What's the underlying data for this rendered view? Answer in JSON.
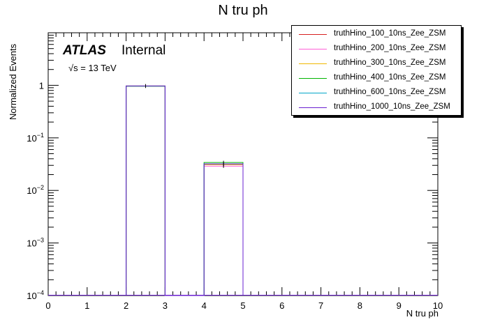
{
  "chart_data": {
    "type": "bar",
    "title": "N tru ph",
    "xlabel": "N tru ph",
    "ylabel": "Normalized Events",
    "xlim": [
      0,
      10
    ],
    "ylim": [
      0.0001,
      10
    ],
    "yscale": "log",
    "atlas_label": "ATLAS",
    "atlas_status": "Internal",
    "energy_label": "√s = 13 TeV",
    "legend_position": "top-right",
    "x_ticks": [
      "0",
      "1",
      "2",
      "3",
      "4",
      "5",
      "6",
      "7",
      "8",
      "9",
      "10"
    ],
    "y_ticks": [
      {
        "value": 0.0001,
        "base": "10",
        "exp": "−4"
      },
      {
        "value": 0.001,
        "base": "10",
        "exp": "−3"
      },
      {
        "value": 0.01,
        "base": "10",
        "exp": "−2"
      },
      {
        "value": 0.1,
        "base": "10",
        "exp": "−1"
      },
      {
        "value": 1,
        "base": "1",
        "exp": ""
      }
    ],
    "bins": [
      [
        2,
        3
      ],
      [
        4,
        5
      ]
    ],
    "series": [
      {
        "name": "truthHino_100_10ns_Zee_ZSM",
        "color": "#d62020",
        "values": [
          0.97,
          0.031
        ]
      },
      {
        "name": "truthHino_200_10ns_Zee_ZSM",
        "color": "#ff5fd7",
        "values": [
          0.97,
          0.029
        ]
      },
      {
        "name": "truthHino_300_10ns_Zee_ZSM",
        "color": "#f0b800",
        "values": [
          0.97,
          0.031
        ]
      },
      {
        "name": "truthHino_400_10ns_Zee_ZSM",
        "color": "#00b400",
        "values": [
          0.96,
          0.034
        ]
      },
      {
        "name": "truthHino_600_10ns_Zee_ZSM",
        "color": "#00a6c8",
        "values": [
          0.97,
          0.032
        ]
      },
      {
        "name": "truthHino_1000_10ns_Zee_ZSM",
        "color": "#6a1fd0",
        "values": [
          0.97,
          0.032
        ]
      }
    ]
  }
}
